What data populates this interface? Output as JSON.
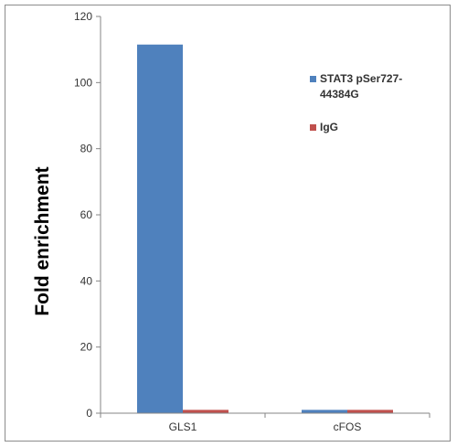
{
  "chart_data": {
    "type": "bar",
    "categories": [
      "GLS1",
      "cFOS"
    ],
    "series": [
      {
        "name": "STAT3 pSer727-44384G",
        "values": [
          111.5,
          1.0
        ],
        "color": "#4f81bd"
      },
      {
        "name": "IgG",
        "values": [
          1.0,
          1.0
        ],
        "color": "#c0504d"
      }
    ],
    "legend_lines": [
      [
        "STAT3 pSer727-",
        "44384G"
      ],
      [
        "IgG"
      ]
    ],
    "ylabel": "Fold enrichment",
    "xlabel": "",
    "ylim": [
      0,
      120
    ],
    "yticks": [
      0,
      20,
      40,
      60,
      80,
      100,
      120
    ],
    "grid": false,
    "legend_position": "right"
  }
}
